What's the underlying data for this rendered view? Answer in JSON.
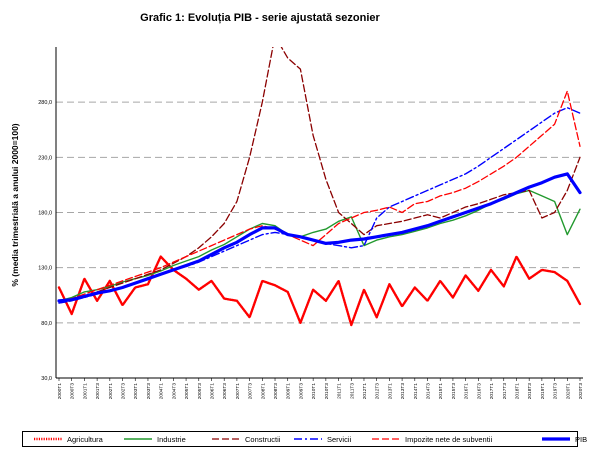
{
  "chart_data": {
    "type": "line",
    "title": "Grafic 1: Evoluția PIB - serie ajustată sezonier",
    "ylabel": "% (media trimestrială a anului 2000=100)",
    "xlabel": "",
    "ylim": [
      30,
      330
    ],
    "yticks": [
      "30,0",
      "80,0",
      "130,0",
      "180,0",
      "230,0",
      "280,0"
    ],
    "ytick_values": [
      30,
      80,
      130,
      180,
      230,
      280
    ],
    "grid": true,
    "legend_position": "bottom",
    "x": [
      "2000T1",
      "2000T3",
      "2001T1",
      "2001T3",
      "2002T1",
      "2002T3",
      "2003T1",
      "2003T3",
      "2004T1",
      "2004T3",
      "2005T1",
      "2005T3",
      "2006T1",
      "2006T3",
      "2007T1",
      "2007T3",
      "2008T1",
      "2008T3",
      "2009T1",
      "2009T3",
      "2010T1",
      "2010T3",
      "2011T1",
      "2011T3",
      "2012T1",
      "2012T3",
      "2013T1",
      "2013T3",
      "2014T1",
      "2014T3",
      "2015T1",
      "2015T3",
      "2016T1",
      "2016T3",
      "2017T1",
      "2017T3",
      "2018T1",
      "2018T3",
      "2019T1",
      "2019T3",
      "2020T1",
      "2020T3"
    ],
    "series": [
      {
        "name": "Agricultura",
        "color": "#ff0000",
        "style": "wavy",
        "values": [
          112,
          88,
          120,
          100,
          118,
          96,
          112,
          115,
          140,
          128,
          120,
          110,
          118,
          102,
          100,
          85,
          118,
          114,
          108,
          80,
          110,
          100,
          118,
          78,
          110,
          85,
          115,
          95,
          112,
          100,
          118,
          103,
          123,
          109,
          128,
          113,
          140,
          120,
          128,
          126,
          118,
          97
        ]
      },
      {
        "name": "Industrie",
        "color": "#22992e",
        "style": "solid",
        "values": [
          100,
          103,
          108,
          110,
          113,
          117,
          120,
          123,
          127,
          132,
          136,
          140,
          146,
          151,
          158,
          165,
          170,
          168,
          160,
          158,
          162,
          165,
          172,
          176,
          150,
          155,
          158,
          160,
          163,
          166,
          170,
          173,
          177,
          182,
          188,
          192,
          197,
          200,
          195,
          190,
          160,
          183
        ]
      },
      {
        "name": "Constructii",
        "color": "#8b0000",
        "style": "dash",
        "values": [
          98,
          100,
          104,
          108,
          112,
          116,
          120,
          124,
          128,
          134,
          140,
          148,
          158,
          170,
          190,
          230,
          280,
          340,
          320,
          310,
          250,
          210,
          180,
          170,
          160,
          168,
          170,
          172,
          175,
          178,
          175,
          180,
          185,
          188,
          192,
          196,
          198,
          200,
          175,
          180,
          200,
          230
        ]
      },
      {
        "name": "Servicii",
        "color": "#0000ff",
        "style": "dashdot",
        "values": [
          98,
          100,
          103,
          106,
          109,
          112,
          116,
          120,
          124,
          128,
          131,
          135,
          140,
          145,
          150,
          155,
          160,
          162,
          160,
          158,
          155,
          152,
          150,
          148,
          150,
          175,
          185,
          190,
          195,
          200,
          205,
          210,
          215,
          222,
          230,
          238,
          246,
          254,
          262,
          270,
          275,
          270
        ]
      },
      {
        "name": "Impozite nete de subventii",
        "color": "#ff0000",
        "style": "dash",
        "values": [
          100,
          102,
          106,
          110,
          114,
          118,
          122,
          126,
          130,
          135,
          140,
          145,
          150,
          155,
          160,
          165,
          168,
          165,
          160,
          155,
          150,
          160,
          170,
          175,
          180,
          182,
          185,
          180,
          188,
          190,
          195,
          198,
          202,
          208,
          215,
          222,
          230,
          240,
          250,
          260,
          290,
          240
        ]
      },
      {
        "name": "PIB",
        "color": "#0000ff",
        "style": "thick",
        "values": [
          100,
          101,
          104,
          107,
          109,
          112,
          116,
          120,
          124,
          128,
          132,
          136,
          142,
          148,
          153,
          160,
          166,
          166,
          160,
          158,
          155,
          152,
          153,
          155,
          156,
          158,
          160,
          162,
          165,
          168,
          172,
          176,
          180,
          184,
          188,
          193,
          198,
          203,
          207,
          212,
          215,
          198
        ]
      }
    ]
  }
}
